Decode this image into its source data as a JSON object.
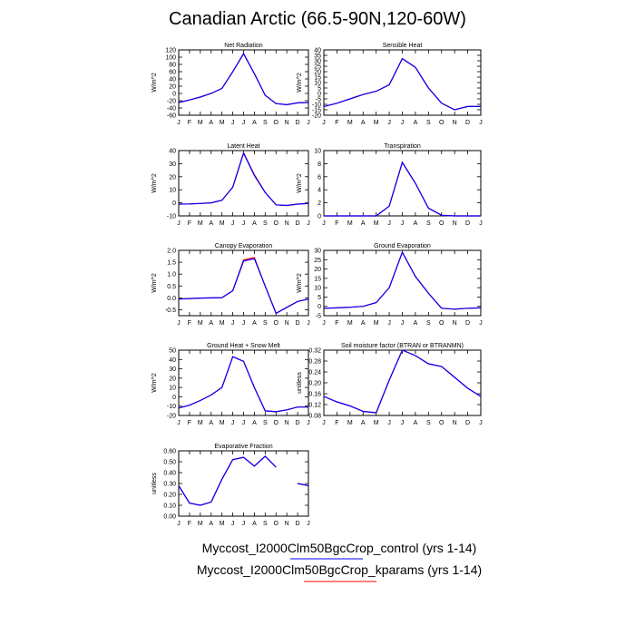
{
  "title": "Canadian Arctic (66.5-90N,120-60W)",
  "colors": {
    "control": "#0000ff",
    "kparams": "#ff0000"
  },
  "legend": [
    {
      "label": "Myccost_I2000Clm50BgcCrop_control (yrs 1-14)",
      "color": "#0000ff"
    },
    {
      "label": "Myccost_I2000Clm50BgcCrop_kparams (yrs 1-14)",
      "color": "#ff0000"
    }
  ],
  "chart_data": [
    {
      "type": "line",
      "title": "Net Radiation",
      "ylabel": "W/m^2",
      "categories": [
        "J",
        "F",
        "M",
        "A",
        "M",
        "J",
        "J",
        "A",
        "S",
        "O",
        "N",
        "D",
        "J"
      ],
      "ylim": [
        -60,
        120
      ],
      "yticks": [
        "-60",
        "-40",
        "-20",
        "0",
        "20",
        "40",
        "60",
        "80",
        "100",
        "120"
      ],
      "series": [
        {
          "name": "Myccost_I2000Clm50BgcCrop_control (yrs 1-14)",
          "values": [
            -25,
            -18,
            -10,
            0,
            14,
            60,
            110,
            55,
            -5,
            -28,
            -31,
            -26,
            -25
          ]
        },
        {
          "name": "Myccost_I2000Clm50BgcCrop_kparams (yrs 1-14)",
          "values": [
            -25,
            -18,
            -10,
            0,
            14,
            60,
            109,
            54,
            -5,
            -28,
            -31,
            -26,
            -25
          ]
        }
      ]
    },
    {
      "type": "line",
      "title": "Sensible Heat",
      "ylabel": "W/m^2",
      "categories": [
        "J",
        "F",
        "M",
        "A",
        "M",
        "J",
        "J",
        "A",
        "S",
        "O",
        "N",
        "D",
        "J"
      ],
      "ylim": [
        -20,
        40
      ],
      "yticks": [
        "-20",
        "-15",
        "-10",
        "-5",
        "0",
        "5",
        "10",
        "15",
        "20",
        "25",
        "30",
        "35",
        "40"
      ],
      "series": [
        {
          "name": "Myccost_I2000Clm50BgcCrop_control (yrs 1-14)",
          "values": [
            -12,
            -9,
            -5,
            -1,
            2,
            8,
            32,
            24,
            5,
            -9,
            -15,
            -12,
            -12
          ]
        },
        {
          "name": "Myccost_I2000Clm50BgcCrop_kparams (yrs 1-14)",
          "values": [
            -12,
            -9,
            -5,
            -1,
            2,
            8,
            32,
            24,
            5,
            -9,
            -15,
            -12,
            -12
          ]
        }
      ]
    },
    {
      "type": "line",
      "title": "Latent Heat",
      "ylabel": "W/m^2",
      "categories": [
        "J",
        "F",
        "M",
        "A",
        "M",
        "J",
        "J",
        "A",
        "S",
        "O",
        "N",
        "D",
        "J"
      ],
      "ylim": [
        -10,
        40
      ],
      "yticks": [
        "-10",
        "0",
        "10",
        "20",
        "30",
        "40"
      ],
      "series": [
        {
          "name": "Myccost_I2000Clm50BgcCrop_control (yrs 1-14)",
          "values": [
            -1,
            -0.8,
            -0.5,
            0,
            2,
            12,
            38,
            21,
            8,
            -1.5,
            -2,
            -1,
            -0.5
          ]
        },
        {
          "name": "Myccost_I2000Clm50BgcCrop_kparams (yrs 1-14)",
          "values": [
            -1,
            -0.8,
            -0.5,
            0,
            2,
            12,
            38.5,
            21.5,
            8,
            -1.5,
            -2,
            -1,
            -0.5
          ]
        }
      ]
    },
    {
      "type": "line",
      "title": "Transpiration",
      "ylabel": "W/m^2",
      "categories": [
        "J",
        "F",
        "M",
        "A",
        "M",
        "J",
        "J",
        "A",
        "S",
        "O",
        "N",
        "D",
        "J"
      ],
      "ylim": [
        0,
        10
      ],
      "yticks": [
        "0",
        "2",
        "4",
        "6",
        "8",
        "10"
      ],
      "series": [
        {
          "name": "Myccost_I2000Clm50BgcCrop_control (yrs 1-14)",
          "values": [
            0,
            0,
            0,
            0,
            0,
            1.5,
            8.2,
            5,
            1.2,
            0.1,
            0,
            0,
            0
          ]
        },
        {
          "name": "Myccost_I2000Clm50BgcCrop_kparams (yrs 1-14)",
          "values": [
            0,
            0,
            0,
            0,
            0,
            1.5,
            8.2,
            5,
            1.2,
            0.1,
            0,
            0,
            0
          ]
        }
      ]
    },
    {
      "type": "line",
      "title": "Canopy Evaporation",
      "ylabel": "W/m^2",
      "categories": [
        "J",
        "F",
        "M",
        "A",
        "M",
        "J",
        "J",
        "A",
        "S",
        "O",
        "N",
        "D",
        "J"
      ],
      "ylim": [
        -0.75,
        2.0
      ],
      "yticks": [
        "-0.5",
        "0.0",
        "0.5",
        "1.0",
        "1.5",
        "2.0"
      ],
      "series": [
        {
          "name": "Myccost_I2000Clm50BgcCrop_control (yrs 1-14)",
          "values": [
            -0.05,
            -0.03,
            -0.01,
            0,
            0.01,
            0.3,
            1.55,
            1.65,
            0.5,
            -0.65,
            -0.4,
            -0.15,
            -0.05
          ]
        },
        {
          "name": "Myccost_I2000Clm50BgcCrop_kparams (yrs 1-14)",
          "values": [
            -0.05,
            -0.03,
            -0.01,
            0,
            0.01,
            0.3,
            1.6,
            1.7,
            0.5,
            -0.65,
            -0.4,
            -0.15,
            -0.05
          ]
        }
      ]
    },
    {
      "type": "line",
      "title": "Ground Evaporation",
      "ylabel": "W/m^2",
      "categories": [
        "J",
        "F",
        "M",
        "A",
        "M",
        "J",
        "J",
        "A",
        "S",
        "O",
        "N",
        "D",
        "J"
      ],
      "ylim": [
        -5,
        30
      ],
      "yticks": [
        "-5",
        "0",
        "5",
        "10",
        "15",
        "20",
        "25",
        "30"
      ],
      "series": [
        {
          "name": "Myccost_I2000Clm50BgcCrop_control (yrs 1-14)",
          "values": [
            -1,
            -0.8,
            -0.5,
            0,
            2,
            10,
            29,
            16,
            7,
            -1,
            -1.5,
            -1,
            -0.8
          ]
        },
        {
          "name": "Myccost_I2000Clm50BgcCrop_kparams (yrs 1-14)",
          "values": [
            -1,
            -0.8,
            -0.5,
            0,
            2,
            10,
            29,
            16,
            7,
            -1,
            -1.5,
            -1,
            -0.8
          ]
        }
      ]
    },
    {
      "type": "line",
      "title": "Ground Heat + Snow Melt",
      "ylabel": "W/m^2",
      "categories": [
        "J",
        "F",
        "M",
        "A",
        "M",
        "J",
        "J",
        "A",
        "S",
        "O",
        "N",
        "D",
        "J"
      ],
      "ylim": [
        -20,
        50
      ],
      "yticks": [
        "-20",
        "-10",
        "0",
        "10",
        "20",
        "30",
        "40",
        "50"
      ],
      "series": [
        {
          "name": "Myccost_I2000Clm50BgcCrop_control (yrs 1-14)",
          "values": [
            -12,
            -9,
            -4,
            2,
            10,
            43,
            38,
            10,
            -15,
            -16,
            -14,
            -11,
            -11
          ]
        },
        {
          "name": "Myccost_I2000Clm50BgcCrop_kparams (yrs 1-14)",
          "values": [
            -12,
            -9,
            -4,
            2,
            10,
            43,
            38,
            10,
            -15,
            -16,
            -14,
            -11,
            -11
          ]
        }
      ]
    },
    {
      "type": "line",
      "title": "Soil moisture factor (BTRAN or BTRANMN)",
      "ylabel": "unitless",
      "categories": [
        "J",
        "F",
        "M",
        "A",
        "M",
        "J",
        "J",
        "A",
        "S",
        "O",
        "N",
        "D",
        "J"
      ],
      "ylim": [
        0.08,
        0.32
      ],
      "yticks": [
        "0.08",
        "0.12",
        "0.16",
        "0.20",
        "0.24",
        "0.28",
        "0.32"
      ],
      "series": [
        {
          "name": "Myccost_I2000Clm50BgcCrop_control (yrs 1-14)",
          "values": [
            0.15,
            0.13,
            0.115,
            0.095,
            0.09,
            0.21,
            0.32,
            0.3,
            0.27,
            0.26,
            0.22,
            0.18,
            0.15
          ]
        },
        {
          "name": "Myccost_I2000Clm50BgcCrop_kparams (yrs 1-14)",
          "values": [
            0.15,
            0.13,
            0.115,
            0.095,
            0.09,
            0.21,
            0.32,
            0.3,
            0.27,
            0.26,
            0.22,
            0.18,
            0.15
          ]
        }
      ]
    },
    {
      "type": "line",
      "title": "Evaporative Fraction",
      "ylabel": "unitless",
      "categories": [
        "J",
        "F",
        "M",
        "A",
        "M",
        "J",
        "J",
        "A",
        "S",
        "O",
        "N",
        "D",
        "J"
      ],
      "ylim": [
        0.0,
        0.6
      ],
      "yticks": [
        "0.00",
        "0.10",
        "0.20",
        "0.30",
        "0.40",
        "0.50",
        "0.60"
      ],
      "series": [
        {
          "name": "Myccost_I2000Clm50BgcCrop_control (yrs 1-14)",
          "values": [
            0.28,
            0.12,
            0.1,
            0.13,
            0.34,
            0.52,
            0.54,
            0.46,
            0.55,
            0.45,
            null,
            0.3,
            0.28
          ]
        },
        {
          "name": "Myccost_I2000Clm50BgcCrop_kparams (yrs 1-14)",
          "values": [
            0.28,
            0.12,
            0.1,
            0.13,
            0.34,
            0.52,
            0.54,
            0.46,
            0.55,
            0.45,
            null,
            0.3,
            0.28
          ]
        }
      ]
    }
  ]
}
